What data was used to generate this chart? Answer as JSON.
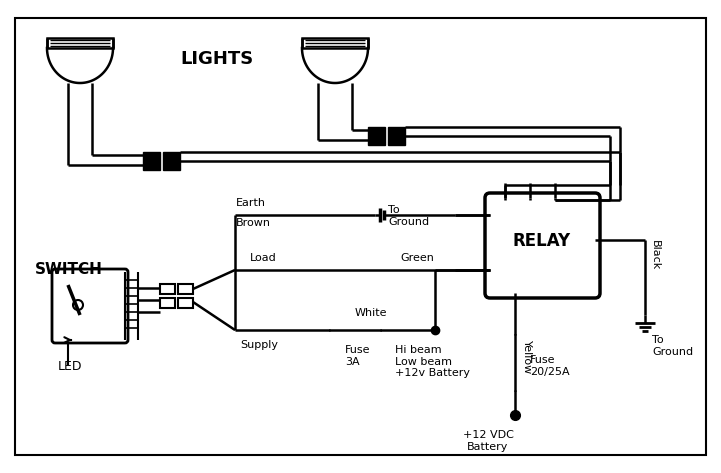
{
  "bg_color": "#ffffff",
  "line_color": "#000000",
  "title_lights": "LIGHTS",
  "title_switch": "SWITCH",
  "title_relay": "RELAY",
  "label_led": "LED",
  "label_earth": "Earth",
  "label_brown": "Brown",
  "label_load": "Load",
  "label_green": "Green",
  "label_supply": "Supply",
  "label_white": "White",
  "label_fuse3a": "Fuse\n3A",
  "label_hibeam": "Hi beam\nLow beam\n+12v Battery",
  "label_yellow": "Yellow",
  "label_fuse20": "Fuse\n20/25A",
  "label_12vdc": "+12 VDC\nBattery",
  "label_black": "Black",
  "label_to_ground1": "To\nGround",
  "label_to_ground2": "To\nGround"
}
